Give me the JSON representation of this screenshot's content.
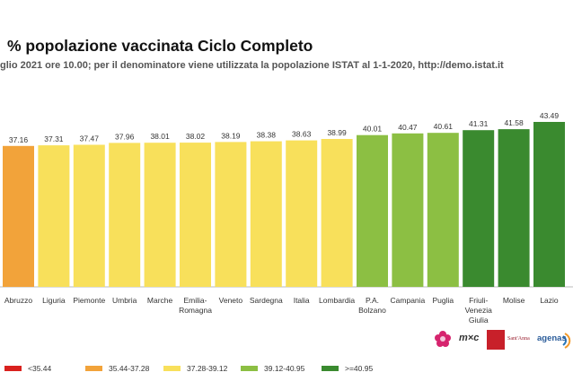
{
  "chart_data": {
    "type": "bar",
    "title": "% popolazione vaccinata Ciclo Completo",
    "subtitle": "glio 2021 ore 10.00; per il denominatore viene utilizzata la popolazione ISTAT al 1-1-2020, http://demo.istat.it",
    "categories": [
      [
        "Abruzzo"
      ],
      [
        "Liguria"
      ],
      [
        "Piemonte"
      ],
      [
        "Umbria"
      ],
      [
        "Marche"
      ],
      [
        "Emilia-",
        "Romagna"
      ],
      [
        "Veneto"
      ],
      [
        "Sardegna"
      ],
      [
        "Italia"
      ],
      [
        "Lombardia"
      ],
      [
        "P.A.",
        "Bolzano"
      ],
      [
        "Campania"
      ],
      [
        "Puglia"
      ],
      [
        "Friuli-",
        "Venezia",
        "Giulia"
      ],
      [
        "Molise"
      ],
      [
        "Lazio"
      ]
    ],
    "values": [
      37.16,
      37.31,
      37.47,
      37.96,
      38.01,
      38.02,
      38.19,
      38.38,
      38.63,
      38.99,
      40.01,
      40.47,
      40.61,
      41.31,
      41.58,
      43.49
    ],
    "value_labels": [
      "37.16",
      "37.31",
      "37.47",
      "37.96",
      "38.01",
      "38.02",
      "38.19",
      "38.38",
      "38.63",
      "38.99",
      "40.01",
      "40.47",
      "40.61",
      "41.31",
      "41.58",
      "43.49"
    ],
    "ylim": [
      0,
      43.49
    ],
    "xlabel": "",
    "ylabel": "",
    "grid": false,
    "legend": [
      {
        "label": "<35.44",
        "color": "#d9211e"
      },
      {
        "label": "35.44-37.28",
        "color": "#f2a33a"
      },
      {
        "label": "37.28-39.12",
        "color": "#f8e05b"
      },
      {
        "label": "39.12-40.95",
        "color": "#8cbf43"
      },
      {
        "label": ">=40.95",
        "color": "#3a8a2f"
      }
    ],
    "legend_position": "bottom-left"
  },
  "logos": [
    {
      "name": "flower-logo",
      "text": ""
    },
    {
      "name": "mx-logo",
      "text": "m×c"
    },
    {
      "name": "red-institute-logo",
      "text": ""
    },
    {
      "name": "santanna-logo",
      "text": "Sant'Anna"
    },
    {
      "name": "agenas-logo",
      "text": "agenas"
    }
  ]
}
